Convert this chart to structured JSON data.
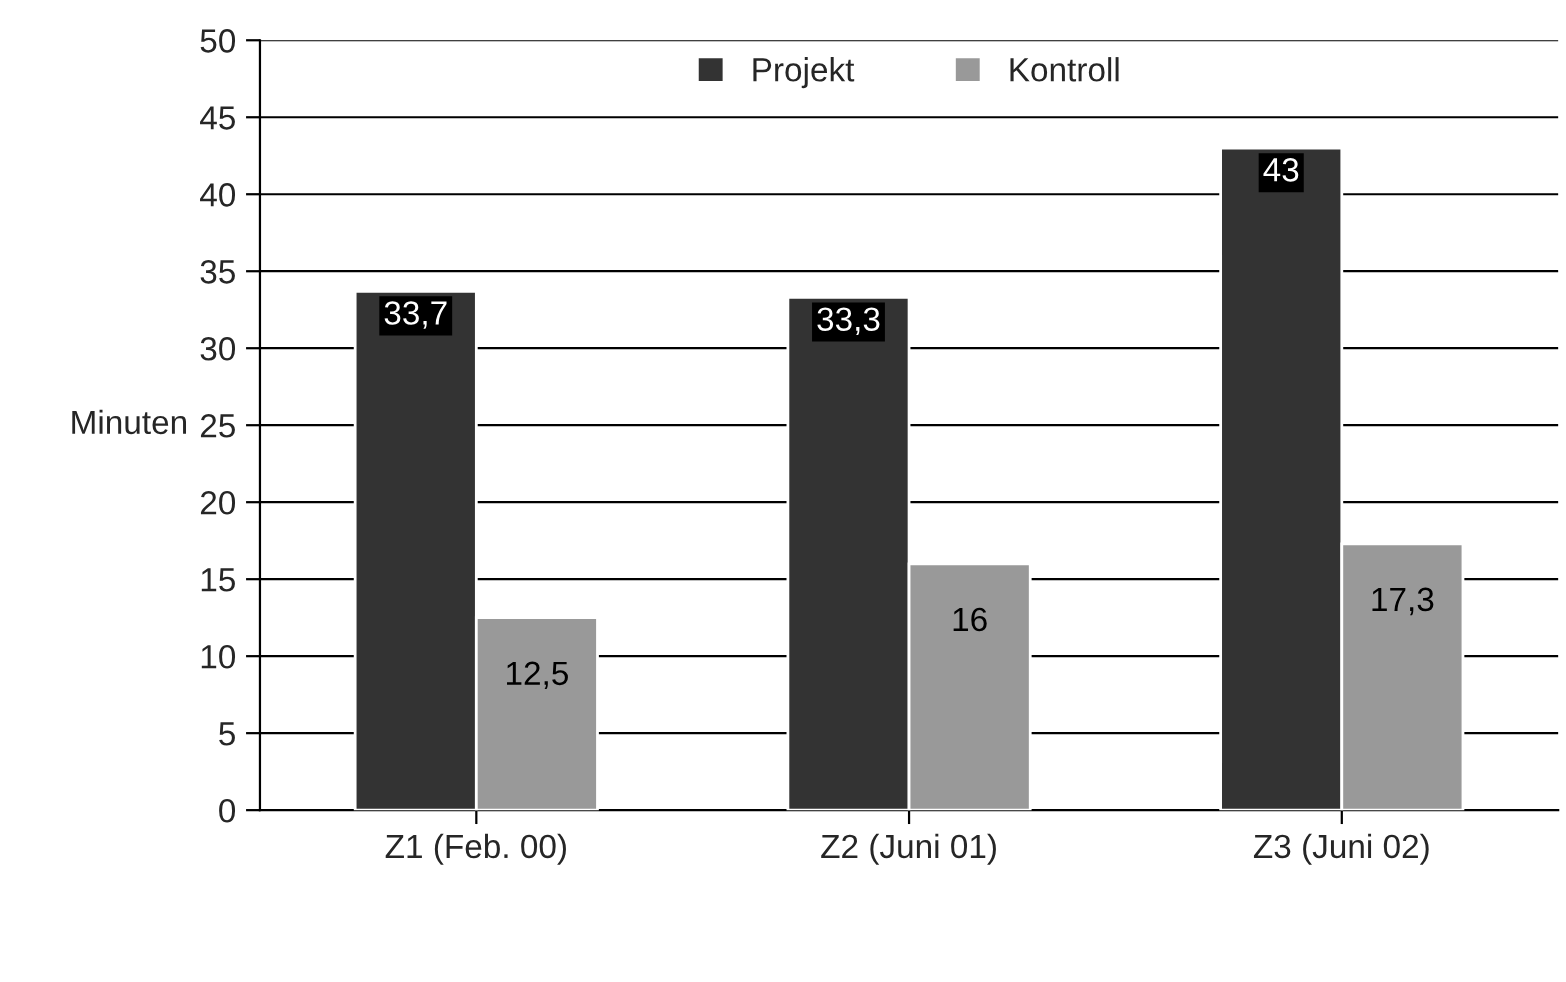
{
  "chart_data": {
    "type": "bar",
    "ylabel": "Minuten",
    "categories": [
      "Z1 (Feb. 00)",
      "Z2 (Juni 01)",
      "Z3 (Juni 02)"
    ],
    "series": [
      {
        "name": "Projekt",
        "color": "#333333",
        "values": [
          33.7,
          33.3,
          43
        ],
        "value_labels": [
          "33,7",
          "33,3",
          "43"
        ]
      },
      {
        "name": "Kontroll",
        "color": "#999999",
        "values": [
          12.5,
          16,
          17.3
        ],
        "value_labels": [
          "12,5",
          "16",
          "17,3"
        ]
      }
    ],
    "ylim": [
      0,
      50
    ],
    "yticks": [
      0,
      5,
      10,
      15,
      20,
      25,
      30,
      35,
      40,
      45,
      50
    ],
    "grid": "y",
    "legend": "top"
  }
}
